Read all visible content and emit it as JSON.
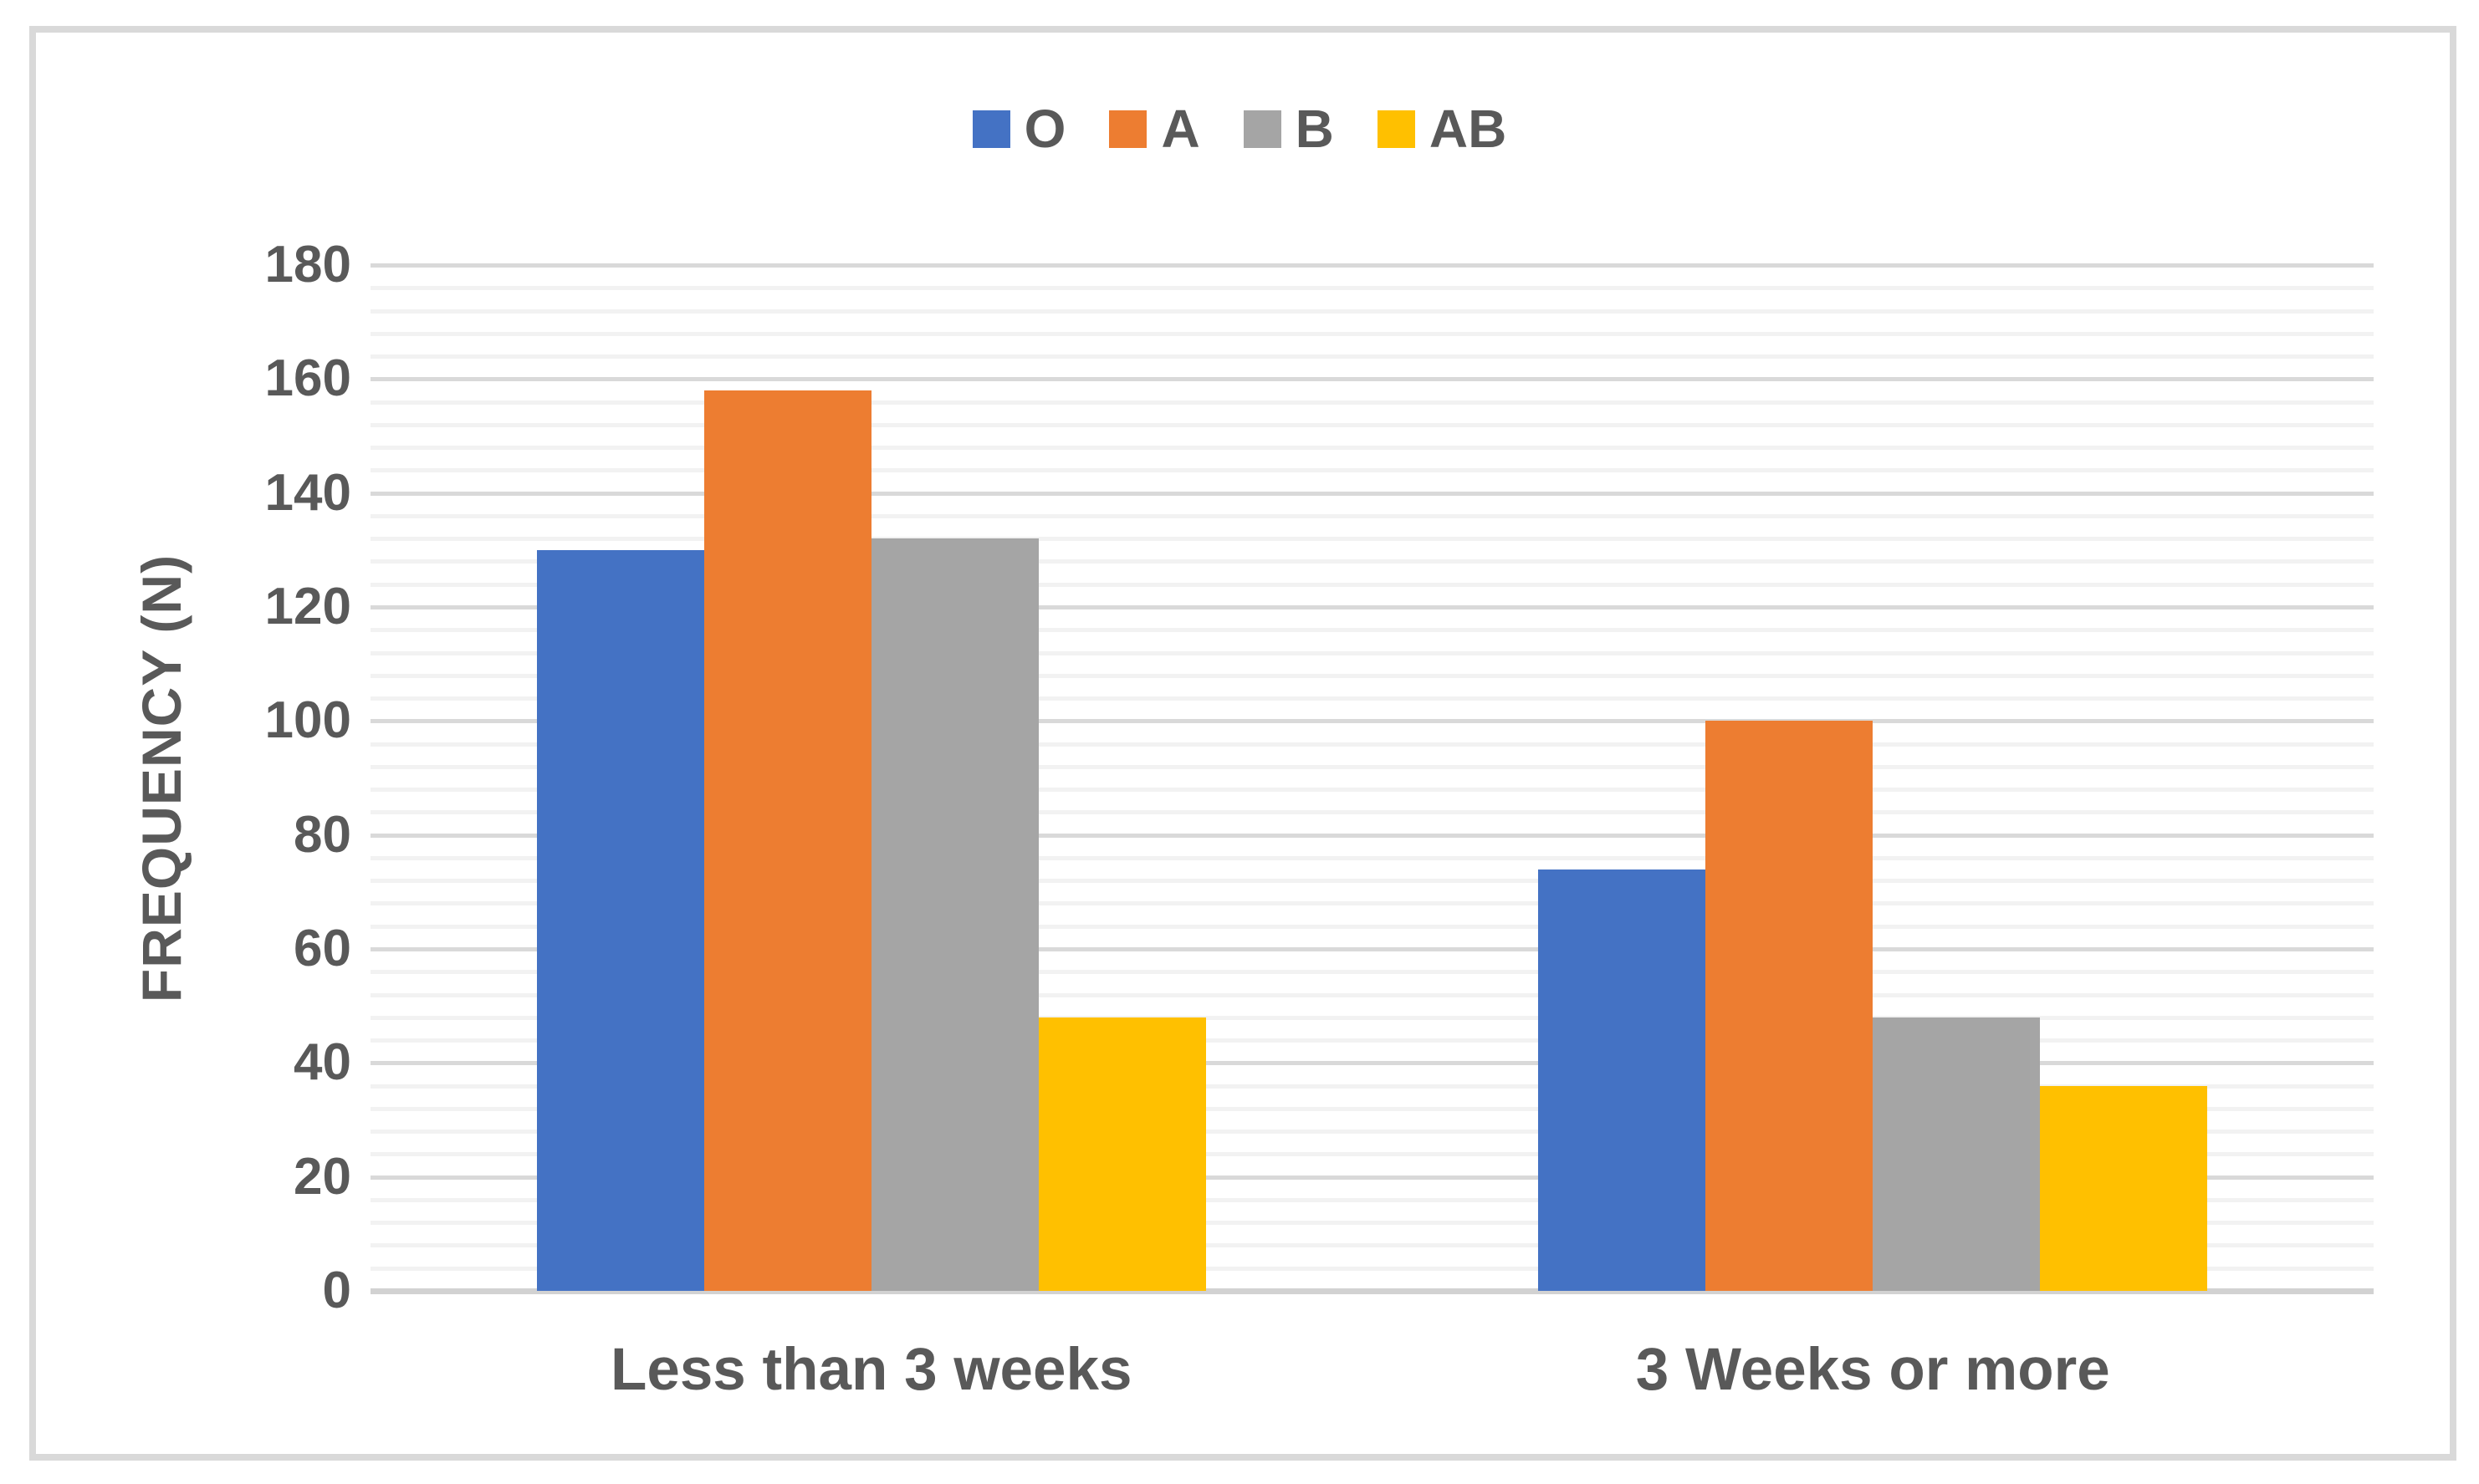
{
  "chart_data": {
    "type": "bar",
    "title": "",
    "categories": [
      "Less than 3 weeks",
      "3 Weeks or more"
    ],
    "series": [
      {
        "name": "O",
        "color": "#4472C4",
        "values": [
          130,
          74
        ]
      },
      {
        "name": "A",
        "color": "#ED7D31",
        "values": [
          158,
          100
        ]
      },
      {
        "name": "B",
        "color": "#A5A5A5",
        "values": [
          132,
          48
        ]
      },
      {
        "name": "AB",
        "color": "#FFC000",
        "values": [
          48,
          36
        ]
      }
    ],
    "xlabel": "",
    "ylabel": "FREQUENCY (N)",
    "ylim": [
      0,
      180
    ],
    "y_major_unit": 20,
    "y_minor_unit": 4,
    "y_tick_labels": [
      "0",
      "20",
      "40",
      "60",
      "80",
      "100",
      "120",
      "140",
      "160",
      "180"
    ],
    "legend_position": "top",
    "legend_entries": [
      "O",
      "A",
      "B",
      "AB"
    ],
    "grid": "horizontal-major-and-minor"
  },
  "colors": {
    "text": "#595959",
    "major_gridline": "#D9D9D9",
    "minor_gridline": "#F2F2F2",
    "axis_line": "#D2D2D2",
    "frame_border": "#D9D9D9",
    "background": "#FFFFFF"
  }
}
